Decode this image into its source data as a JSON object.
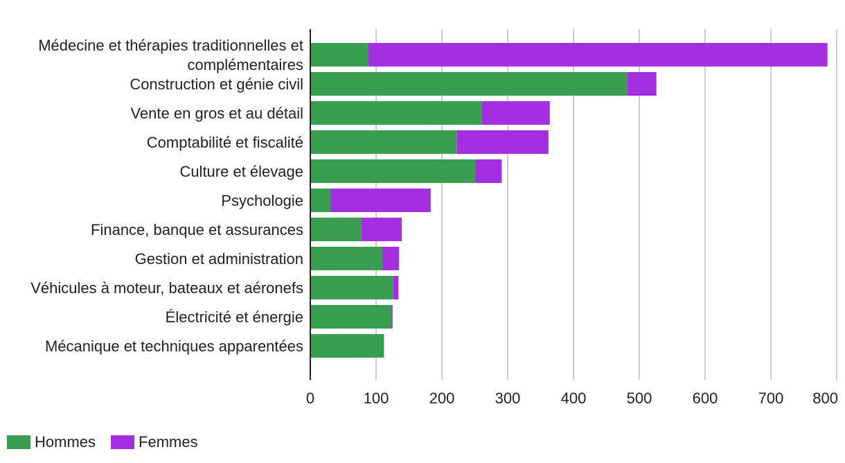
{
  "chart_data": {
    "type": "bar",
    "orientation": "horizontal",
    "stacked": true,
    "categories": [
      [
        "Médecine et thérapies traditionnelles et",
        "complémentaires"
      ],
      [
        "Construction et génie civil"
      ],
      [
        "Vente en gros et au détail"
      ],
      [
        "Comptabilité et fiscalité"
      ],
      [
        "Culture et élevage"
      ],
      [
        "Psychologie"
      ],
      [
        "Finance, banque et assurances"
      ],
      [
        "Gestion et administration"
      ],
      [
        "Véhicules à moteur, bateaux et aéronefs"
      ],
      [
        "Électricité et énergie"
      ],
      [
        "Mécanique et techniques apparentées"
      ]
    ],
    "series": [
      {
        "name": "Hommes",
        "color": "#3a9e51",
        "values": [
          88,
          482,
          261,
          223,
          251,
          31,
          78,
          110,
          126,
          123,
          112
        ]
      },
      {
        "name": "Femmes",
        "color": "#a32fe0",
        "values": [
          698,
          44,
          103,
          139,
          40,
          152,
          61,
          25,
          8,
          2,
          0
        ]
      }
    ],
    "xlim": [
      0,
      800
    ],
    "xticks": [
      0,
      100,
      200,
      300,
      400,
      500,
      600,
      700,
      800
    ],
    "grid": true,
    "legend_position": "bottom-left",
    "title": "",
    "xlabel": "",
    "ylabel": ""
  }
}
